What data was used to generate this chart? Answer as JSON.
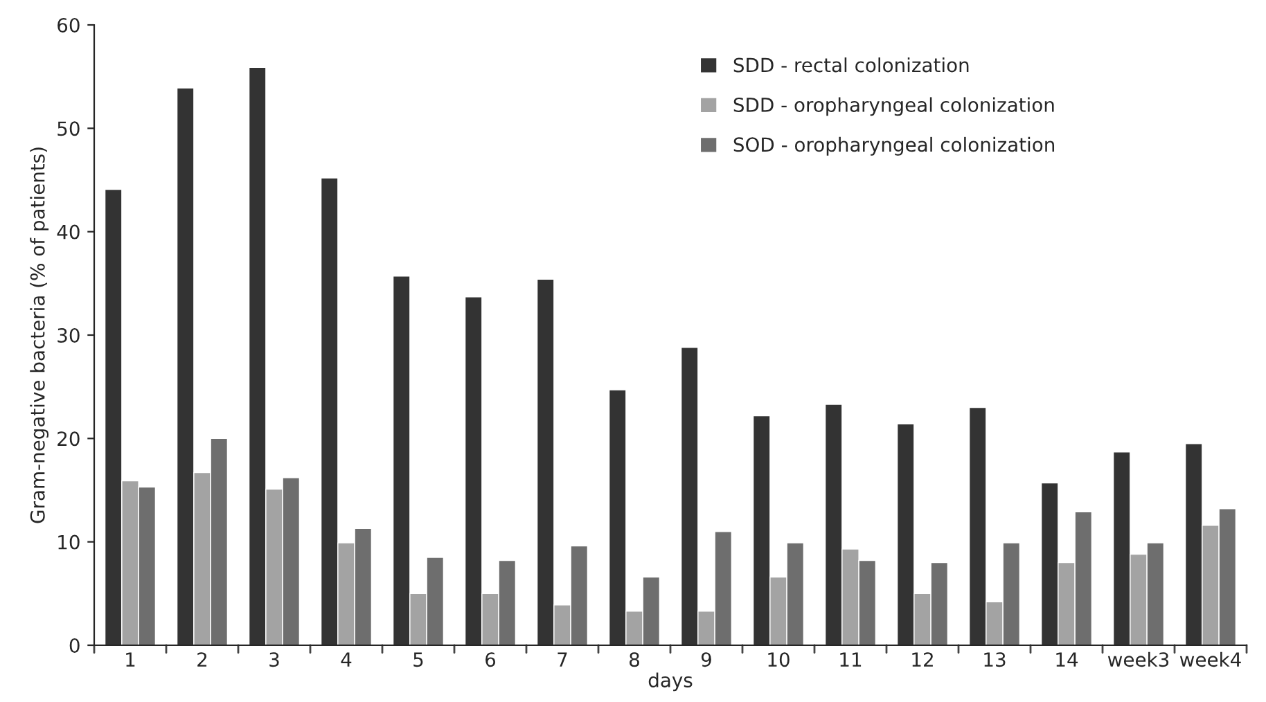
{
  "chart_data": {
    "type": "bar",
    "xlabel": "days",
    "ylabel": "Gram-negative bacteria (% of patients)",
    "categories": [
      "1",
      "2",
      "3",
      "4",
      "5",
      "6",
      "7",
      "8",
      "9",
      "10",
      "11",
      "12",
      "13",
      "14",
      "week3",
      "week4"
    ],
    "series": [
      {
        "name": "SDD - rectal colonization",
        "color": "#333333",
        "values": [
          44.1,
          53.9,
          55.9,
          45.2,
          35.7,
          33.7,
          35.4,
          24.7,
          28.8,
          22.2,
          23.3,
          21.4,
          23.0,
          15.7,
          18.7,
          19.5
        ]
      },
      {
        "name": "SDD - oropharyngeal colonization",
        "color": "#a3a3a3",
        "values": [
          15.9,
          16.7,
          15.1,
          9.9,
          5.0,
          5.0,
          3.9,
          3.3,
          3.3,
          6.6,
          9.3,
          5.0,
          4.2,
          8.0,
          8.8,
          11.6
        ]
      },
      {
        "name": "SOD - oropharyngeal colonization",
        "color": "#6e6e6e",
        "values": [
          15.3,
          20.0,
          16.2,
          11.3,
          8.5,
          8.2,
          9.6,
          6.6,
          11.0,
          9.9,
          8.2,
          8.0,
          9.9,
          12.9,
          9.9,
          13.2
        ]
      }
    ],
    "ylim": [
      0,
      60
    ],
    "yticks": [
      0,
      10,
      20,
      30,
      40,
      50,
      60
    ],
    "grid": false,
    "legend": "top right"
  }
}
